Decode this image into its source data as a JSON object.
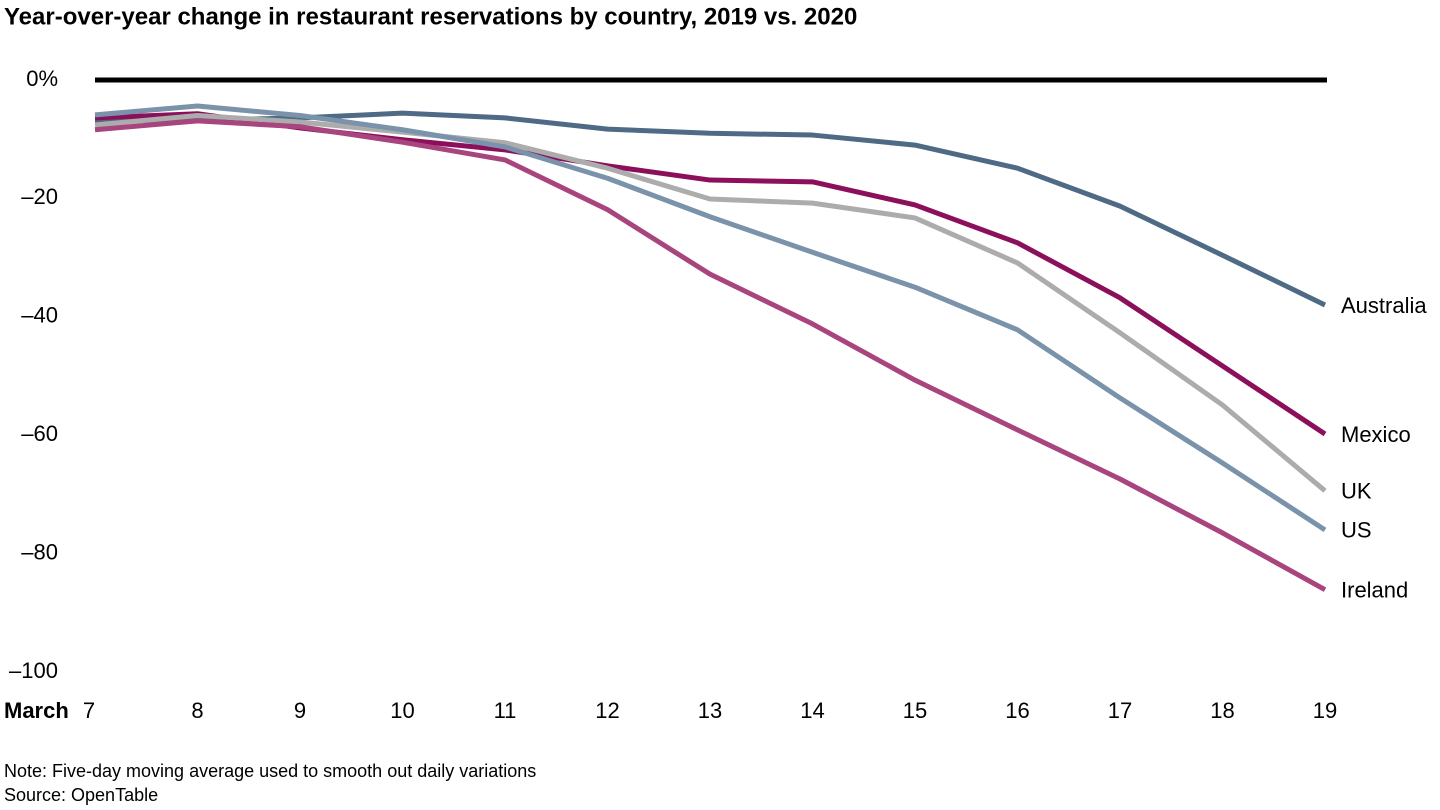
{
  "chart_data": {
    "type": "line",
    "title": "Year-over-year change in restaurant reservations by country, 2019 vs. 2020",
    "x_label": "March",
    "x": [
      7,
      8,
      9,
      10,
      11,
      12,
      13,
      14,
      15,
      16,
      17,
      18,
      19
    ],
    "xlim": [
      7,
      19
    ],
    "xticks": [
      7,
      8,
      9,
      10,
      11,
      12,
      13,
      14,
      15,
      16,
      17,
      18,
      19
    ],
    "ylim": [
      -100,
      0
    ],
    "yticks": [
      {
        "value": 0,
        "label": "0%"
      },
      {
        "value": -20,
        "label": "–20"
      },
      {
        "value": -40,
        "label": "–40"
      },
      {
        "value": -60,
        "label": "–60"
      },
      {
        "value": -80,
        "label": "–80"
      },
      {
        "value": -100,
        "label": "–100"
      }
    ],
    "grid": false,
    "series": [
      {
        "name": "Australia",
        "color": "#4e6a85",
        "values": [
          -6.9,
          -6.8,
          -6.4,
          -5.6,
          -6.4,
          -8.3,
          -9.0,
          -9.3,
          -11.0,
          -14.9,
          -21.3,
          -29.6,
          -38.0
        ]
      },
      {
        "name": "Mexico",
        "color": "#8b0f5a",
        "values": [
          -6.4,
          -5.7,
          -8.1,
          -10.1,
          -11.8,
          -14.5,
          -16.9,
          -17.2,
          -21.1,
          -27.5,
          -36.8,
          -48.3,
          -59.8
        ]
      },
      {
        "name": "UK",
        "color": "#acacac",
        "values": [
          -7.6,
          -6.0,
          -7.1,
          -8.8,
          -10.6,
          -14.9,
          -20.1,
          -20.8,
          -23.3,
          -30.9,
          -42.7,
          -54.9,
          -69.4
        ]
      },
      {
        "name": "US",
        "color": "#7a93ab",
        "values": [
          -5.9,
          -4.4,
          -6.0,
          -8.4,
          -11.3,
          -16.6,
          -23.1,
          -29.1,
          -35.0,
          -42.2,
          -53.7,
          -64.7,
          -76.0
        ]
      },
      {
        "name": "Ireland",
        "color": "#a8447e",
        "values": [
          -8.4,
          -6.9,
          -7.9,
          -10.5,
          -13.5,
          -21.9,
          -32.8,
          -41.2,
          -50.7,
          -59.1,
          -67.4,
          -76.5,
          -86.1
        ]
      }
    ],
    "note": "Note: Five-day moving average used to smooth out daily variations",
    "source": "Source: OpenTable"
  }
}
